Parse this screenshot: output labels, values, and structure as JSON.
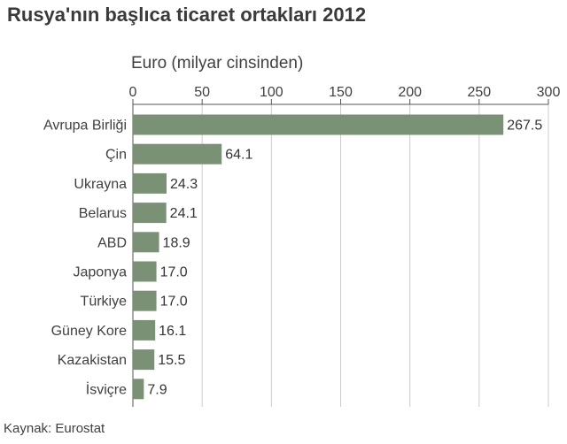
{
  "header": {
    "title": "Rusya'nın başlıca ticaret ortakları 2012",
    "unit_label": "Euro (milyar cinsinden)"
  },
  "footer": {
    "source": "Kaynak: Eurostat"
  },
  "colors": {
    "bar": "#7a9175",
    "grid": "#cccccc",
    "axis": "#555555"
  },
  "chart_data": {
    "type": "bar",
    "orientation": "horizontal",
    "categories": [
      "Avrupa Birliği",
      "Çin",
      "Ukrayna",
      "Belarus",
      "ABD",
      "Japonya",
      "Türkiye",
      "Güney Kore",
      "Kazakistan",
      "İsviçre"
    ],
    "values": [
      267.5,
      64.1,
      24.3,
      24.1,
      18.9,
      17.0,
      17.0,
      16.1,
      15.5,
      7.9
    ],
    "value_labels": [
      "267.5",
      "64.1",
      "24.3",
      "24.1",
      "18.9",
      "17.0",
      "17.0",
      "16.1",
      "15.5",
      "7.9"
    ],
    "xlabel": "Euro (milyar cinsinden)",
    "xlim": [
      0,
      300
    ],
    "xticks": [
      0,
      50,
      100,
      150,
      200,
      250,
      300
    ],
    "xtick_labels": [
      "0",
      "50",
      "100",
      "150",
      "200",
      "250",
      "300"
    ],
    "axis_position": "top",
    "grid": true,
    "legend": false
  }
}
